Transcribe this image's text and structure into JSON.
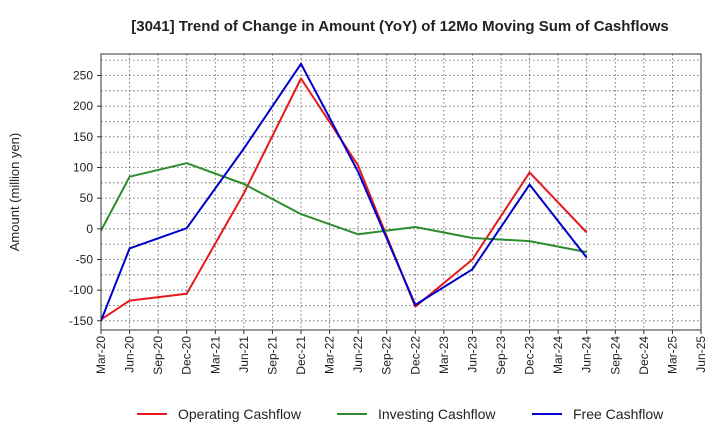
{
  "chart_data": {
    "type": "line",
    "title": "[3041]  Trend of Change in Amount (YoY) of 12Mo Moving Sum of Cashflows",
    "xlabel": "",
    "ylabel": "Amount (million yen)",
    "ylim": [
      -165,
      285
    ],
    "yticks": [
      250,
      200,
      150,
      100,
      50,
      0,
      -50,
      -100,
      -150
    ],
    "grid": true,
    "legend_position": "bottom",
    "categories": [
      "Mar-20",
      "Jun-20",
      "Sep-20",
      "Dec-20",
      "Mar-21",
      "Jun-21",
      "Sep-21",
      "Dec-21",
      "Mar-22",
      "Jun-22",
      "Sep-22",
      "Dec-22",
      "Mar-23",
      "Jun-23",
      "Sep-23",
      "Dec-23",
      "Mar-24",
      "Jun-24",
      "Sep-24",
      "Dec-24",
      "Mar-25",
      "Jun-25"
    ],
    "series": [
      {
        "name": "Operating Cashflow",
        "color": "#e41a1c",
        "values": [
          -148,
          -117,
          null,
          -106,
          null,
          58,
          null,
          245,
          null,
          103,
          null,
          -127,
          null,
          -50,
          null,
          92,
          null,
          -6,
          null,
          null,
          null,
          null
        ]
      },
      {
        "name": "Investing Cashflow",
        "color": "#2e8b2e",
        "values": [
          -3,
          85,
          null,
          107,
          null,
          73,
          null,
          24,
          null,
          -9,
          null,
          3,
          null,
          -15,
          null,
          -20,
          null,
          -38,
          null,
          null,
          null,
          null
        ]
      },
      {
        "name": "Free Cashflow",
        "color": "#0000cc",
        "values": [
          -150,
          -32,
          null,
          1,
          null,
          131,
          null,
          269,
          null,
          93,
          null,
          -124,
          null,
          -66,
          null,
          72,
          null,
          -47,
          null,
          null,
          null,
          null
        ]
      }
    ]
  }
}
